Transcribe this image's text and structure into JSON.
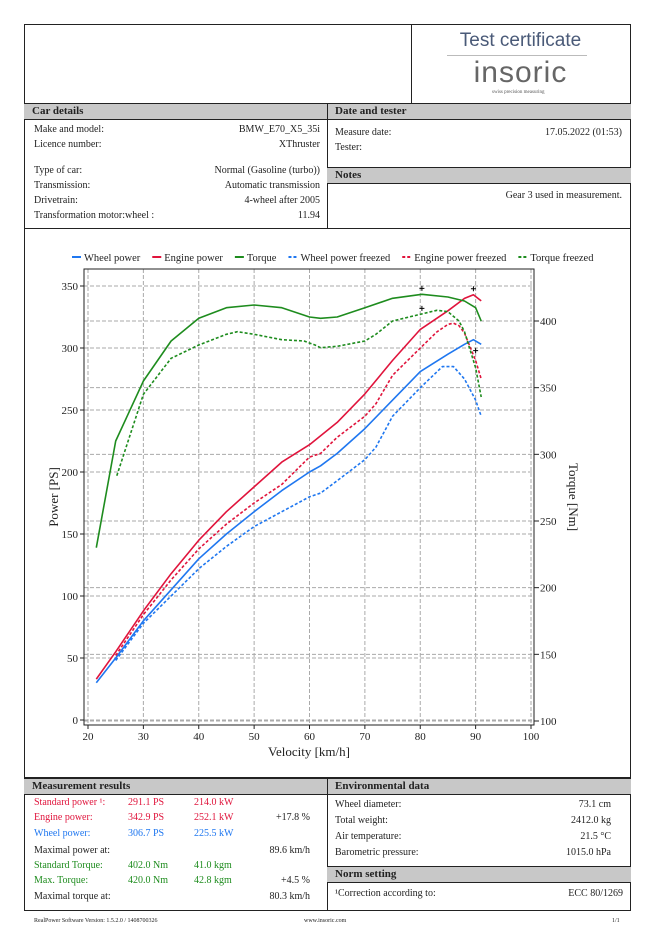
{
  "header": {
    "title": "Test certificate",
    "logo": "insoric",
    "logo_tagline": "swiss precision measuring"
  },
  "car_details": {
    "title": "Car details",
    "rows": [
      {
        "label": "Make and model:",
        "value": "BMW_E70_X5_35i"
      },
      {
        "label": "Licence number:",
        "value": "XThruster"
      },
      {
        "label": "Type of car:",
        "value": "Normal (Gasoline (turbo))"
      },
      {
        "label": "Transmission:",
        "value": "Automatic transmission"
      },
      {
        "label": "Drivetrain:",
        "value": "4-wheel after 2005"
      },
      {
        "label": "Transformation motor:wheel :",
        "value": "11.94"
      }
    ]
  },
  "date_tester": {
    "title": "Date and tester",
    "rows": [
      {
        "label": "Measure date:",
        "value": "17.05.2022 (01:53)"
      },
      {
        "label": "Tester:",
        "value": ""
      }
    ]
  },
  "notes": {
    "title": "Notes",
    "text": "Gear 3 used in measurement."
  },
  "chart_data": {
    "type": "line",
    "xlabel": "Velocity [km/h]",
    "ylabel": "Power [PS]",
    "y2label": "Torque [Nm]",
    "xlim": [
      20,
      100
    ],
    "ylim": [
      0,
      350
    ],
    "y2lim": [
      100,
      430
    ],
    "grid": true,
    "legend": "top",
    "xticks": [
      20,
      30,
      40,
      50,
      60,
      70,
      80,
      90,
      100
    ],
    "yticks": [
      0,
      50,
      100,
      150,
      200,
      250,
      300,
      350
    ],
    "y2ticks": [
      100,
      150,
      200,
      250,
      300,
      350,
      400
    ],
    "series": [
      {
        "name": "Wheel power",
        "axis": "left",
        "color": "#1f77f0",
        "dash": false,
        "points": [
          [
            21.5,
            30
          ],
          [
            25,
            50
          ],
          [
            30,
            80
          ],
          [
            35,
            105
          ],
          [
            40,
            130
          ],
          [
            45,
            150
          ],
          [
            50,
            168
          ],
          [
            55,
            185
          ],
          [
            60,
            200
          ],
          [
            62,
            205
          ],
          [
            65,
            215
          ],
          [
            70,
            235
          ],
          [
            75,
            258
          ],
          [
            80,
            281
          ],
          [
            85,
            295
          ],
          [
            88,
            303
          ],
          [
            89.6,
            306.7
          ],
          [
            91,
            303
          ]
        ]
      },
      {
        "name": "Engine power",
        "axis": "left",
        "color": "#e0143c",
        "dash": false,
        "points": [
          [
            21.5,
            33
          ],
          [
            25,
            55
          ],
          [
            30,
            88
          ],
          [
            35,
            118
          ],
          [
            40,
            145
          ],
          [
            45,
            168
          ],
          [
            50,
            188
          ],
          [
            55,
            208
          ],
          [
            60,
            222
          ],
          [
            65,
            240
          ],
          [
            70,
            263
          ],
          [
            75,
            290
          ],
          [
            80,
            315
          ],
          [
            85,
            330
          ],
          [
            88,
            340
          ],
          [
            89.6,
            342.9
          ],
          [
            91,
            338
          ]
        ]
      },
      {
        "name": "Torque",
        "axis": "right",
        "color": "#1e8c1e",
        "dash": false,
        "points": [
          [
            21.5,
            230
          ],
          [
            25,
            310
          ],
          [
            30,
            355
          ],
          [
            35,
            385
          ],
          [
            40,
            402
          ],
          [
            45,
            410
          ],
          [
            50,
            412
          ],
          [
            55,
            410
          ],
          [
            60,
            403
          ],
          [
            62,
            402
          ],
          [
            65,
            403
          ],
          [
            70,
            410
          ],
          [
            75,
            417
          ],
          [
            80.3,
            420
          ],
          [
            85,
            418
          ],
          [
            88,
            415
          ],
          [
            90,
            410
          ],
          [
            91,
            400
          ]
        ]
      },
      {
        "name": "Wheel power freezed",
        "axis": "left",
        "color": "#1f77f0",
        "dash": true,
        "points": [
          [
            25,
            48
          ],
          [
            30,
            78
          ],
          [
            35,
            100
          ],
          [
            40,
            122
          ],
          [
            45,
            140
          ],
          [
            50,
            156
          ],
          [
            55,
            168
          ],
          [
            60,
            180
          ],
          [
            62,
            183
          ],
          [
            65,
            193
          ],
          [
            70,
            210
          ],
          [
            72,
            220
          ],
          [
            75,
            245
          ],
          [
            80,
            268
          ],
          [
            84,
            285
          ],
          [
            86,
            285
          ],
          [
            88,
            275
          ],
          [
            90,
            258
          ],
          [
            91,
            245
          ]
        ]
      },
      {
        "name": "Engine power freezed",
        "axis": "left",
        "color": "#e0143c",
        "dash": true,
        "points": [
          [
            25,
            52
          ],
          [
            30,
            85
          ],
          [
            35,
            113
          ],
          [
            40,
            138
          ],
          [
            45,
            158
          ],
          [
            50,
            175
          ],
          [
            55,
            190
          ],
          [
            60,
            212
          ],
          [
            62,
            215
          ],
          [
            65,
            228
          ],
          [
            70,
            245
          ],
          [
            72,
            255
          ],
          [
            75,
            278
          ],
          [
            80,
            300
          ],
          [
            83,
            313
          ],
          [
            85,
            319
          ],
          [
            86,
            320
          ],
          [
            87,
            318
          ],
          [
            88,
            312
          ],
          [
            90,
            290
          ],
          [
            91,
            275
          ]
        ]
      },
      {
        "name": "Torque freezed",
        "axis": "right",
        "color": "#1e8c1e",
        "dash": true,
        "points": [
          [
            25.2,
            284
          ],
          [
            30,
            345
          ],
          [
            35,
            372
          ],
          [
            40,
            382
          ],
          [
            45,
            390
          ],
          [
            47,
            392
          ],
          [
            50,
            390
          ],
          [
            55,
            386
          ],
          [
            59,
            385
          ],
          [
            61,
            382
          ],
          [
            62,
            380
          ],
          [
            65,
            381
          ],
          [
            70,
            385
          ],
          [
            72,
            390
          ],
          [
            75,
            400
          ],
          [
            80,
            405
          ],
          [
            83,
            408
          ],
          [
            85,
            407
          ],
          [
            87,
            400
          ],
          [
            88,
            392
          ],
          [
            90,
            365
          ],
          [
            91,
            343
          ]
        ]
      }
    ],
    "markers": [
      {
        "x": 80.3,
        "y": 420,
        "axis": "right"
      },
      {
        "x": 80.3,
        "y": 405,
        "axis": "right"
      },
      {
        "x": 89.6,
        "y": 342.9,
        "axis": "left"
      },
      {
        "x": 90,
        "y": 293,
        "axis": "left"
      }
    ]
  },
  "results": {
    "title": "Measurement results",
    "rows": [
      {
        "label": "Standard power ¹:",
        "v1": "291.1 PS",
        "v2": "214.0 kW",
        "v3": "",
        "color": "#e0143c"
      },
      {
        "label": "Engine power:",
        "v1": "342.9 PS",
        "v2": "252.1 kW",
        "v3": "+17.8 %",
        "color": "#e0143c"
      },
      {
        "label": "Wheel power:",
        "v1": "306.7 PS",
        "v2": "225.5 kW",
        "v3": "",
        "color": "#1f77f0"
      },
      {
        "label": "Maximal power at:",
        "v1": "",
        "v2": "",
        "v3": "89.6 km/h",
        "color": "#222222"
      },
      {
        "label": "Standard Torque:",
        "v1": "402.0 Nm",
        "v2": "41.0 kgm",
        "v3": "",
        "color": "#1e8c1e"
      },
      {
        "label": "Max. Torque:",
        "v1": "420.0 Nm",
        "v2": "42.8 kgm",
        "v3": "+4.5 %",
        "color": "#1e8c1e"
      },
      {
        "label": "Maximal torque at:",
        "v1": "",
        "v2": "",
        "v3": "80.3 km/h",
        "color": "#222222"
      }
    ]
  },
  "environment": {
    "title": "Environmental data",
    "rows": [
      {
        "label": "Wheel diameter:",
        "value": "73.1 cm"
      },
      {
        "label": "Total weight:",
        "value": "2412.0 kg"
      },
      {
        "label": "Air temperature:",
        "value": "21.5 °C"
      },
      {
        "label": "Barometric pressure:",
        "value": "1015.0 hPa"
      }
    ]
  },
  "norm": {
    "title": "Norm setting",
    "label": "¹Correction according to:",
    "value": "ECC 80/1269"
  },
  "footer": {
    "version": "RealPower Software Version: 1.5.2.0 / 1408700326",
    "website": "www.insoric.com",
    "page": "1/1"
  }
}
